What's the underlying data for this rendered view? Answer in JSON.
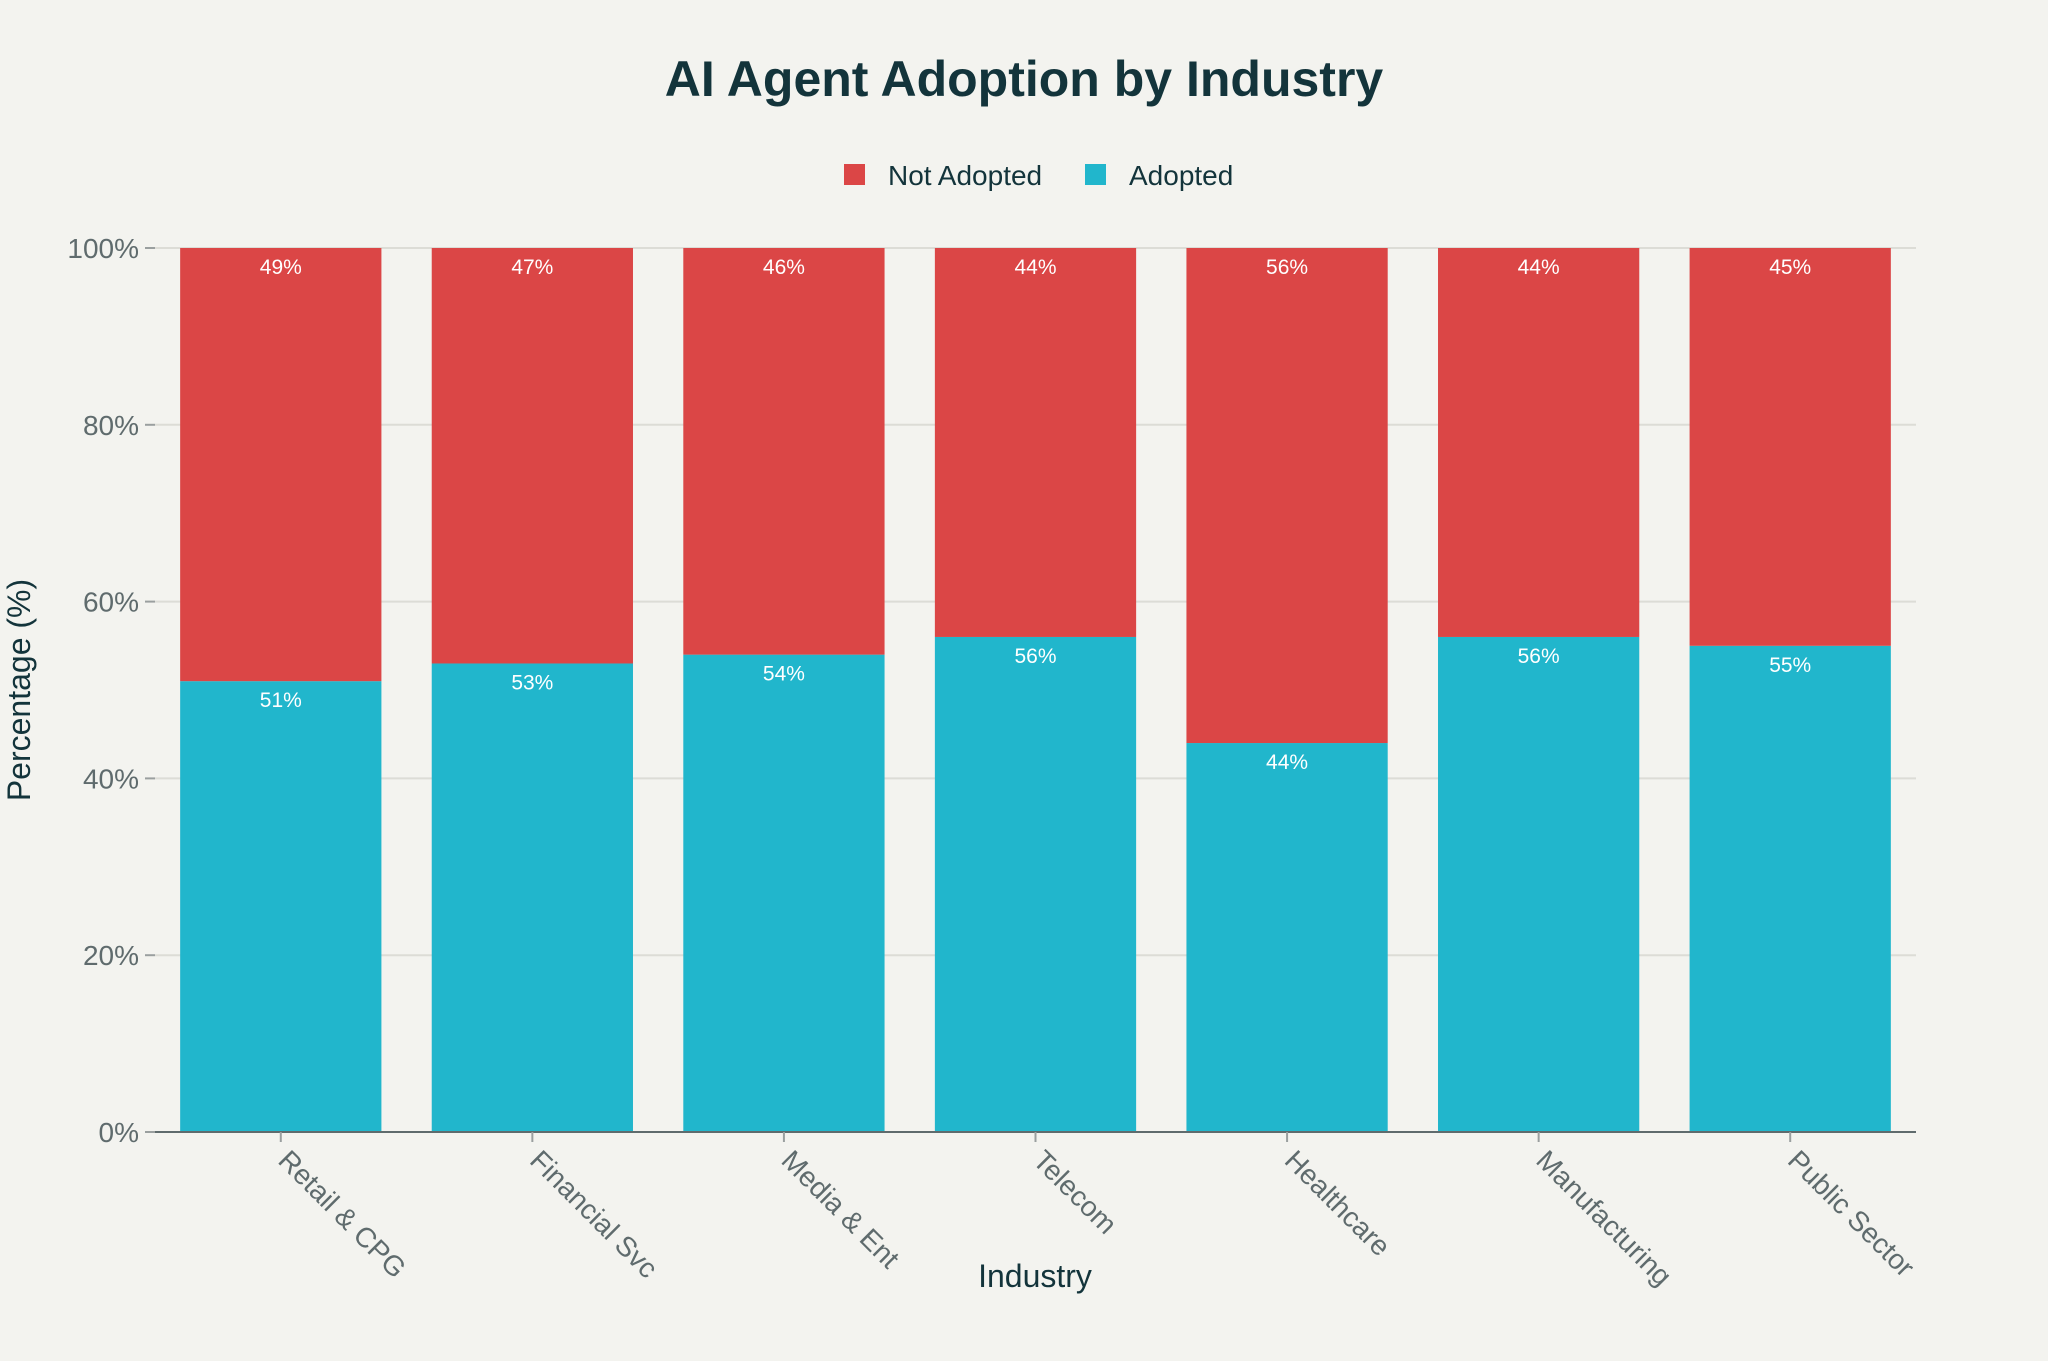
{
  "chart_data": {
    "type": "bar",
    "stacked": true,
    "title": "AI Agent Adoption by Industry",
    "xlabel": "Industry",
    "ylabel": "Percentage (%)",
    "ylim": [
      0,
      100
    ],
    "yticks": [
      "0%",
      "20%",
      "40%",
      "60%",
      "80%",
      "100%"
    ],
    "grid": true,
    "legend_position": "top-center",
    "categories": [
      "Retail & CPG",
      "Financial Svc",
      "Media & Ent",
      "Telecom",
      "Healthcare",
      "Manufacturing",
      "Public Sector"
    ],
    "series": [
      {
        "name": "Adopted",
        "color": "#21b6cc",
        "values": [
          51,
          53,
          54,
          56,
          44,
          56,
          55
        ],
        "labels": [
          "51%",
          "53%",
          "54%",
          "56%",
          "44%",
          "56%",
          "55%"
        ]
      },
      {
        "name": "Not Adopted",
        "color": "#db4646",
        "values": [
          49,
          47,
          46,
          44,
          56,
          44,
          45
        ],
        "labels": [
          "49%",
          "47%",
          "46%",
          "44%",
          "56%",
          "44%",
          "45%"
        ]
      }
    ],
    "legend_order": [
      "Not Adopted",
      "Adopted"
    ]
  }
}
